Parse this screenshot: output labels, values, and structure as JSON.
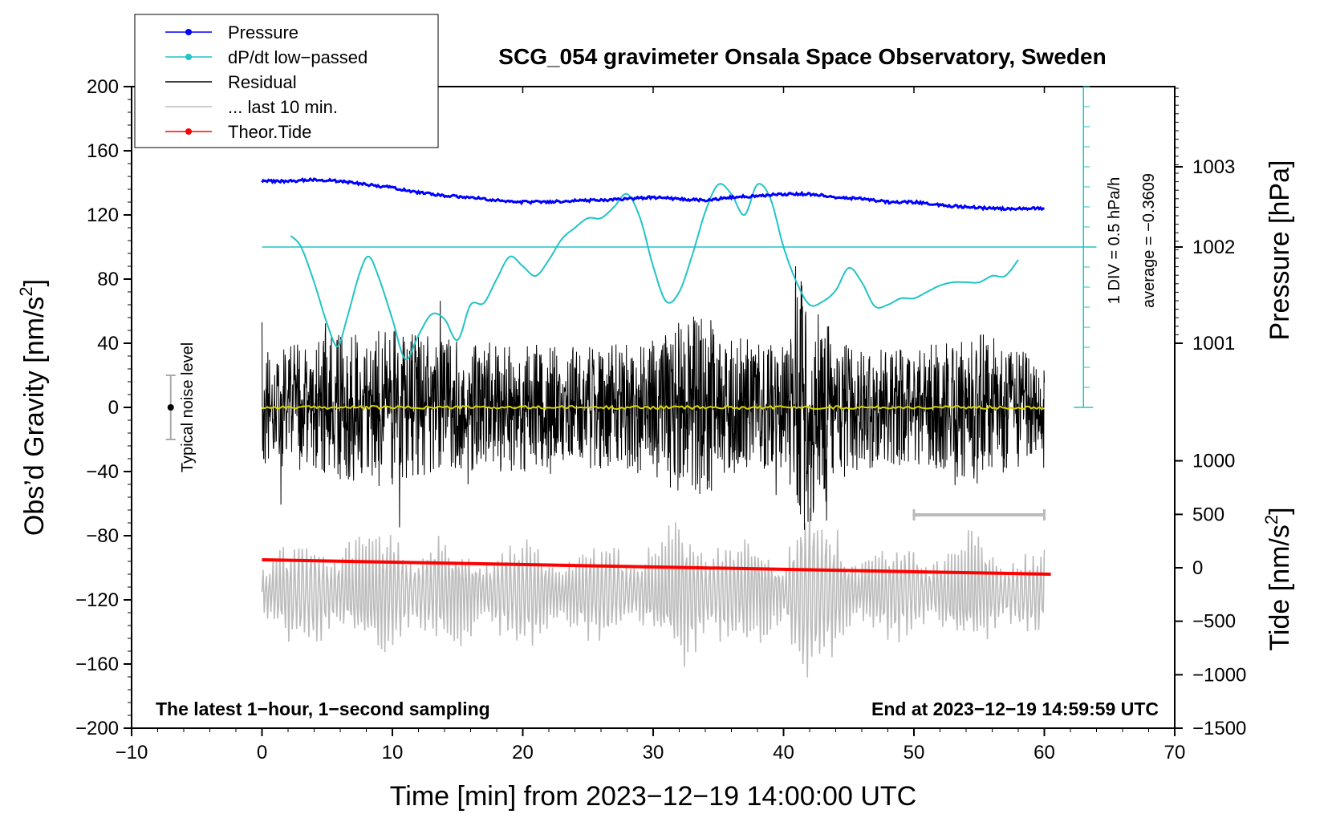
{
  "chart_data": {
    "type": "line",
    "title": "SCG_054 gravimeter Onsala Space Observatory, Sweden",
    "xlabel": "Time [min] from 2023−12−19 14:00:00 UTC",
    "ylabel_left_main": "Obs’d Gravity [nm/s",
    "ylabel_left_sup": "2",
    "ylabel_left_end": "]",
    "ylabel_right_pressure": "Pressure [hPa]",
    "ylabel_right_tide_main": "Tide [nm/s",
    "ylabel_right_tide_sup": "2",
    "ylabel_right_tide_end": "]",
    "xlim": [
      -10,
      70
    ],
    "ylim": [
      -200,
      200
    ],
    "x_ticks": [
      -10,
      0,
      10,
      20,
      30,
      40,
      50,
      60,
      70
    ],
    "x_tick_labels": [
      "−10",
      "0",
      "10",
      "20",
      "30",
      "40",
      "50",
      "60",
      "70"
    ],
    "y_ticks": [
      -200,
      -160,
      -120,
      -80,
      -40,
      0,
      40,
      80,
      120,
      160,
      200
    ],
    "y_tick_labels": [
      "−200",
      "−160",
      "−120",
      "−80",
      "−40",
      "0",
      "40",
      "80",
      "120",
      "160",
      "200"
    ],
    "pressure_axis": {
      "ticks": [
        1001,
        1002,
        1003
      ],
      "labels": [
        "1001",
        "1002",
        "1003"
      ],
      "gravity_equivalent": [
        40,
        100,
        150
      ]
    },
    "tide_axis": {
      "ticks": [
        -1500,
        -1000,
        -500,
        0,
        500,
        1000
      ],
      "labels": [
        "−1500",
        "−1000",
        "−500",
        "0",
        "500",
        "1000"
      ],
      "gravity_equivalent": [
        -200,
        -166.7,
        -133.3,
        -100,
        -66.7,
        -33.3
      ]
    },
    "legend": {
      "placement": "top-left",
      "entries": [
        {
          "label": "Pressure",
          "color": "#0000ff",
          "marker": true
        },
        {
          "label": "dP/dt low−passed",
          "color": "#22c4c4",
          "marker": true
        },
        {
          "label": "Residual",
          "color": "#000000",
          "marker": false
        },
        {
          "label": "... last 10 min.",
          "color": "#bbbbbb",
          "marker": false
        },
        {
          "label": "Theor.Tide",
          "color": "#ff0000",
          "marker": true
        }
      ]
    },
    "series": [
      {
        "name": "Pressure",
        "color": "#0000ff",
        "x": [
          0,
          2,
          4,
          6,
          8,
          10,
          12,
          14,
          16,
          18,
          20,
          22,
          24,
          26,
          28,
          30,
          32,
          34,
          36,
          38,
          40,
          42,
          44,
          46,
          48,
          50,
          52,
          54,
          56,
          58,
          60
        ],
        "y": [
          141,
          141,
          142,
          141,
          139,
          137,
          134,
          132,
          131,
          129,
          128,
          128,
          129,
          129,
          130,
          131,
          130,
          129,
          131,
          132,
          133,
          133,
          131,
          130,
          128,
          128,
          126,
          125,
          124,
          124,
          124
        ]
      },
      {
        "name": "dP/dt low−passed",
        "color": "#22c4c4",
        "x": [
          2.2,
          3,
          4,
          5,
          5.8,
          6.5,
          7.5,
          8.2,
          9,
          10,
          11,
          12,
          13,
          14,
          15,
          16,
          17,
          18,
          19,
          20,
          21,
          22,
          23,
          24,
          25,
          26,
          27,
          28,
          29,
          30,
          31,
          32,
          33,
          34,
          35,
          36,
          37,
          38,
          39,
          40,
          41,
          42,
          43,
          44,
          45,
          46,
          47,
          48,
          49,
          50,
          51,
          52,
          53,
          54,
          55,
          56,
          57,
          58
        ],
        "y": [
          107,
          100,
          78,
          52,
          38,
          55,
          84,
          94,
          80,
          55,
          30,
          45,
          58,
          55,
          42,
          64,
          65,
          80,
          94,
          88,
          82,
          92,
          105,
          112,
          118,
          118,
          125,
          133,
          118,
          88,
          66,
          72,
          95,
          122,
          139,
          133,
          120,
          139,
          130,
          100,
          78,
          64,
          66,
          73,
          87,
          78,
          63,
          64,
          68,
          68,
          72,
          76,
          78,
          78,
          78,
          82,
          82,
          92
        ]
      },
      {
        "name": "Residual",
        "color": "#000000",
        "x_range": [
          0,
          60
        ],
        "description_envelope_x": [
          0,
          5,
          10,
          15,
          20,
          25,
          30,
          33,
          36,
          40,
          41.3,
          45,
          50,
          55,
          60
        ],
        "description_envelope_y": [
          35,
          45,
          50,
          42,
          40,
          38,
          42,
          60,
          45,
          38,
          80,
          40,
          36,
          48,
          30
        ]
      },
      {
        "name": "... last 10 min.",
        "color": "#bbbbbb",
        "x_range": [
          0,
          60
        ],
        "baseline": -115
      },
      {
        "name": "Theor.Tide",
        "color": "#ff0000",
        "x": [
          0,
          60.5
        ],
        "y": [
          -95,
          -104
        ]
      },
      {
        "name": "Smoothed residual",
        "color": "#d6d600",
        "x_range": [
          0,
          60
        ],
        "y": 0
      }
    ],
    "annotations": {
      "noise_label": "Typical noise level",
      "noise_bar": [
        -20,
        20
      ],
      "dpdt_scale_label": "1 DIV = 0.5 hPa/h",
      "dpdt_average_label": "average = −0.3609",
      "dpdt_zero_line": 100,
      "last10_bar_x": [
        50,
        60
      ],
      "last10_bar_y": -67,
      "footer_left": "The latest 1−hour, 1−second sampling",
      "footer_right": "End at 2023−12−19 14:59:59 UTC"
    }
  }
}
